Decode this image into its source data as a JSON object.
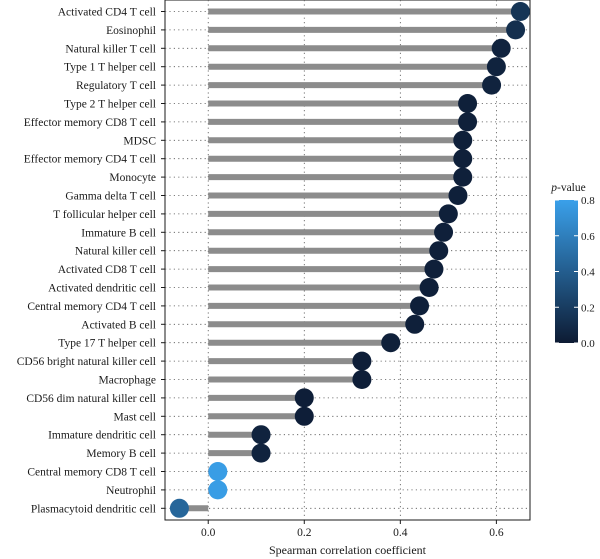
{
  "chart_data": {
    "type": "lollipop",
    "xlabel": "Spearman correlation coefficient",
    "xlim": [
      -0.09,
      0.67
    ],
    "xticks": [
      0.0,
      0.2,
      0.4,
      0.6
    ],
    "xtick_labels": [
      "0.0",
      "0.2",
      "0.4",
      "0.6"
    ],
    "grid": "dotted",
    "categories": [
      "Activated CD4 T cell",
      "Eosinophil",
      "Natural killer T cell",
      "Type 1 T helper cell",
      "Regulatory T cell",
      "Type 2 T helper cell",
      "Effector memory CD8 T cell",
      "MDSC",
      "Effector memory CD4 T cell",
      "Monocyte",
      "Gamma delta T cell",
      "T follicular helper cell",
      "Immature B cell",
      "Natural killer cell",
      "Activated CD8 T cell",
      "Activated dendritic cell",
      "Central memory CD4 T cell",
      "Activated B cell",
      "Type 17 T helper cell",
      "CD56 bright natural killer cell",
      "Macrophage",
      "CD56 dim natural killer cell",
      "Mast cell",
      "Immature dendritic cell",
      "Memory B cell",
      "Central memory CD8 T cell",
      "Neutrophil",
      "Plasmacytoid dendritic cell"
    ],
    "values": [
      0.65,
      0.64,
      0.61,
      0.6,
      0.59,
      0.54,
      0.54,
      0.53,
      0.53,
      0.53,
      0.52,
      0.5,
      0.49,
      0.48,
      0.47,
      0.46,
      0.44,
      0.43,
      0.38,
      0.32,
      0.32,
      0.2,
      0.2,
      0.11,
      0.11,
      0.02,
      0.02,
      -0.06
    ],
    "p_values": [
      0.15,
      0.12,
      0.05,
      0.05,
      0.05,
      0.03,
      0.03,
      0.03,
      0.03,
      0.03,
      0.03,
      0.03,
      0.03,
      0.03,
      0.03,
      0.03,
      0.03,
      0.03,
      0.03,
      0.02,
      0.02,
      0.02,
      0.02,
      0.05,
      0.05,
      0.78,
      0.78,
      0.45
    ],
    "legend": {
      "title_italic": "p",
      "title_rest": "-value",
      "ticks": [
        0.0,
        0.2,
        0.4,
        0.6,
        0.8
      ],
      "tick_labels": [
        "0.0",
        "0.2",
        "0.4",
        "0.6",
        "0.8"
      ],
      "range": [
        0.0,
        0.8
      ],
      "placement": "right",
      "color_low": "#0d1b33",
      "color_high": "#3aa0ea"
    },
    "stem_color": "#8c8c8c"
  }
}
